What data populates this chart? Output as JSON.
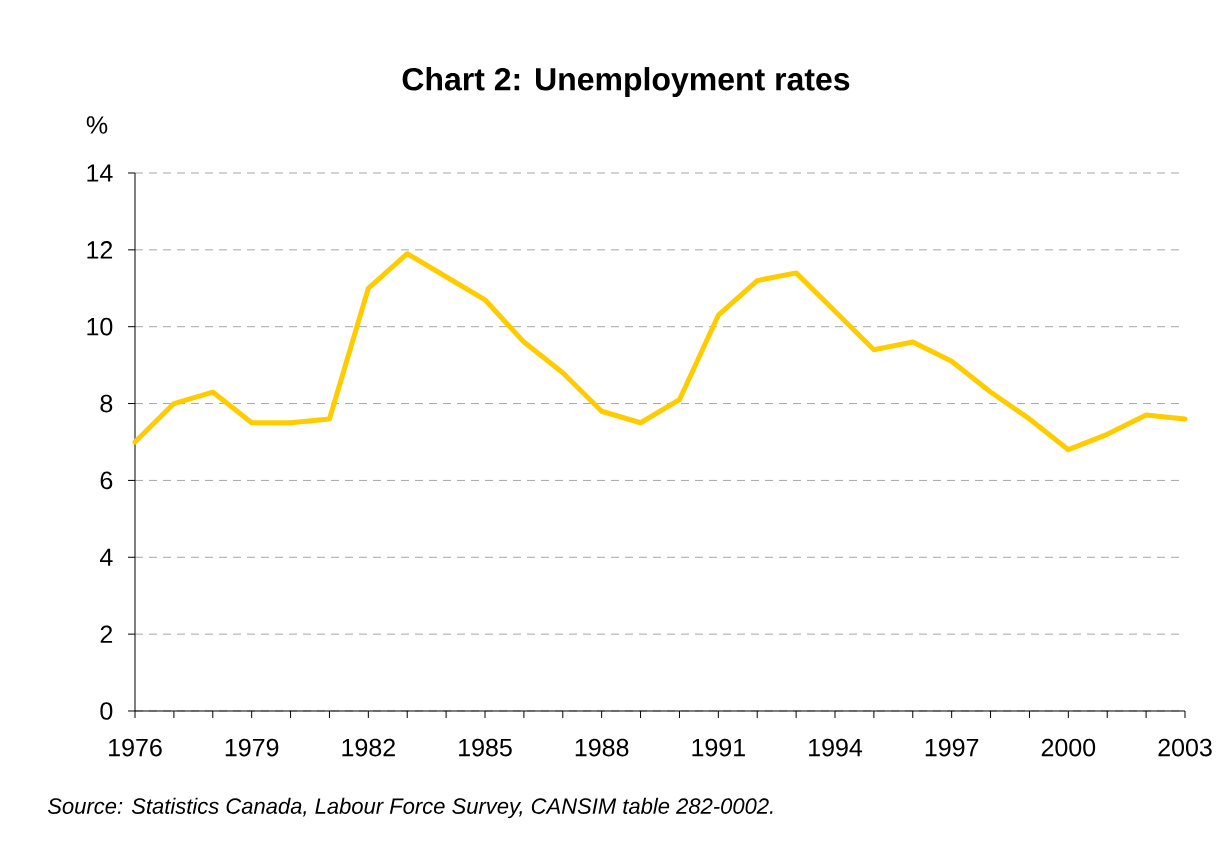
{
  "chart_data": {
    "type": "line",
    "title": "Chart 2: Unemployment rates",
    "ylabel": "%",
    "x": [
      1976,
      1977,
      1978,
      1979,
      1980,
      1981,
      1982,
      1983,
      1984,
      1985,
      1986,
      1987,
      1988,
      1989,
      1990,
      1991,
      1992,
      1993,
      1994,
      1995,
      1996,
      1997,
      1998,
      1999,
      2000,
      2001,
      2002,
      2003
    ],
    "series": [
      {
        "color": "#ffcc00",
        "values": [
          7.0,
          8.0,
          8.3,
          7.5,
          7.5,
          7.6,
          11.0,
          11.9,
          11.3,
          10.7,
          9.6,
          8.8,
          7.8,
          7.5,
          8.1,
          10.3,
          11.2,
          11.4,
          10.4,
          9.4,
          9.6,
          9.1,
          8.3,
          7.6,
          6.8,
          7.2,
          7.7,
          7.6
        ]
      }
    ],
    "xlim": [
      1976,
      2003
    ],
    "ylim": [
      0,
      14
    ],
    "xticks": [
      1976,
      {
        "value": 1977,
        "label": null
      },
      {
        "value": 1978,
        "label": null
      },
      1979,
      {
        "value": 1980,
        "label": null
      },
      {
        "value": 1981,
        "label": null
      },
      1982,
      {
        "value": 1983,
        "label": null
      },
      {
        "value": 1984,
        "label": null
      },
      1985,
      {
        "value": 1986,
        "label": null
      },
      {
        "value": 1987,
        "label": null
      },
      1988,
      {
        "value": 1989,
        "label": null
      },
      {
        "value": 1990,
        "label": null
      },
      1991,
      {
        "value": 1992,
        "label": null
      },
      {
        "value": 1993,
        "label": null
      },
      1994,
      {
        "value": 1995,
        "label": null
      },
      {
        "value": 1996,
        "label": null
      },
      1997,
      {
        "value": 1998,
        "label": null
      },
      {
        "value": 1999,
        "label": null
      },
      2000,
      {
        "value": 2001,
        "label": null
      },
      {
        "value": 2002,
        "label": null
      },
      2003
    ],
    "yticks": [
      0,
      2,
      4,
      6,
      8,
      10,
      12,
      14
    ],
    "grid": "y",
    "legend": false,
    "marker": "none",
    "line_style": "solid",
    "annotations": [
      "Source: Statistics Canada, Labour Force Survey, CANSIM table 282-0002."
    ]
  }
}
